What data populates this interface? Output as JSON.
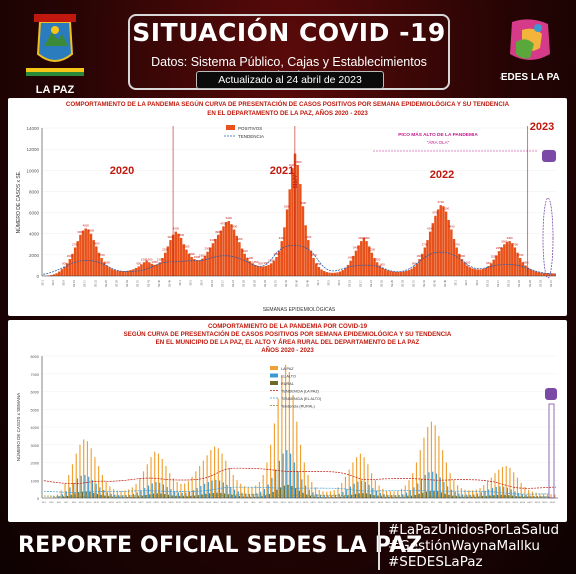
{
  "header": {
    "title": "SITUACIÓN COVID -19",
    "subtitle": "Datos: Sistema Público, Cajas y Establecimientos Privados",
    "updated": "Actualizado al 24 abril de 2023",
    "logo_left_text": "LA PAZ",
    "logo_right_text": "SEDES LA PAZ"
  },
  "footer": {
    "report": "REPORTE OFICIAL SEDES LA PAZ",
    "hashtags": [
      "#LaPazUnidosPorLaSalud",
      "#GestiónWaynaMallku",
      "#SEDESLaPaz"
    ]
  },
  "colors": {
    "accent": "#c0180c",
    "bar": "#e8521a",
    "orange": "#f0a030",
    "blue": "#3d9ad1",
    "olive": "#6b6a2a",
    "background": "#2a0505"
  },
  "chart_data": [
    {
      "type": "bar",
      "title": "COMPORTAMIENTO DE LA PANDEMIA SEGÚN CURVA DE PRESENTACIÓN DE CASOS POSITIVOS POR SEMANA EPIDEMIOLÓGICA Y SU TENDENCIA",
      "subtitle": "EN EL DEPARTAMENTO DE LA PAZ, AÑOS 2020 - 2023",
      "xlabel": "SEMANAS EPIDEMIOLÓGICAS",
      "ylabel": "NÚMERO DE CASOS x SE.",
      "ylim": [
        0,
        14000
      ],
      "yticks": [
        "0",
        "2000",
        "4000",
        "6000",
        "8000",
        "10000",
        "12000",
        "14000"
      ],
      "legend": [
        "POSITIVOS",
        "TENDENCIA"
      ],
      "legend_position": "top-center",
      "year_labels": [
        "2020",
        "2021",
        "2022",
        "2023"
      ],
      "annotation": "PICO MÁS ALTO DE LA PANDEMIA",
      "annotation_sub": "\"ÁRA OLA\"",
      "peak_label": "11577",
      "series": [
        {
          "name": "POSITIVOS",
          "values": [
            10,
            20,
            50,
            90,
            160,
            260,
            420,
            650,
            900,
            1200,
            1600,
            2100,
            2700,
            3300,
            3900,
            4300,
            4500,
            4400,
            4000,
            3400,
            2800,
            2200,
            1700,
            1300,
            1000,
            800,
            650,
            560,
            500,
            480,
            460,
            470,
            500,
            560,
            640,
            760,
            900,
            1100,
            1300,
            1450,
            1300,
            1150,
            1050,
            1100,
            1300,
            1700,
            2200,
            2800,
            3400,
            3900,
            4200,
            4000,
            3600,
            3000,
            2500,
            2100,
            1800,
            1600,
            1500,
            1500,
            1650,
            1900,
            2300,
            2700,
            3100,
            3500,
            3900,
            4300,
            4700,
            5100,
            5200,
            4900,
            4400,
            3800,
            3200,
            2600,
            2100,
            1700,
            1400,
            1200,
            1050,
            950,
            900,
            900,
            950,
            1050,
            1200,
            1450,
            1800,
            2400,
            3300,
            4600,
            6300,
            8200,
            10200,
            11577,
            10500,
            8700,
            6600,
            4800,
            3400,
            2400,
            1700,
            1200,
            850,
            620,
            470,
            370,
            320,
            300,
            310,
            340,
            420,
            560,
            760,
            1050,
            1450,
            1900,
            2400,
            2900,
            3300,
            3600,
            3300,
            2800,
            2200,
            1700,
            1300,
            1000,
            800,
            650,
            540,
            470,
            420,
            400,
            390,
            400,
            430,
            480,
            560,
            700,
            900,
            1200,
            1600,
            2100,
            2700,
            3400,
            4200,
            5000,
            5700,
            6300,
            6700,
            6600,
            6100,
            5300,
            4400,
            3500,
            2700,
            2100,
            1600,
            1250,
            1000,
            830,
            720,
            650,
            620,
            620,
            660,
            760,
            940,
            1200,
            1550,
            1950,
            2350,
            2700,
            3000,
            3200,
            3300,
            3100,
            2700,
            2200,
            1700,
            1300,
            1000,
            780,
            620,
            500,
            420,
            360,
            320,
            290,
            270,
            260,
            250,
            240
          ]
        }
      ]
    },
    {
      "type": "bar",
      "title": "COMPORTAMIENTO DE LA PANDEMIA POR COVID-19",
      "subtitle": "SEGÚN CURVA DE PRESENTACIÓN DE CASOS POSITIVOS POR SEMANA EPIDEMIOLÓGICA Y SU TENDENCIA",
      "subtitle2": "EN EL MUNICIPIO DE LA PAZ, EL ALTO Y ÁREA RURAL DEL DEPARTAMENTO DE LA PAZ",
      "subtitle3": "AÑOS 2020 - 2023",
      "ylabel": "NÚMERO DE CASOS x SEMANA",
      "ylim": [
        0,
        8000
      ],
      "yticks": [
        "0",
        "1000",
        "2000",
        "3000",
        "4000",
        "5000",
        "6000",
        "7000",
        "8000"
      ],
      "legend": [
        "LA PAZ",
        "EL ALTO",
        "RURAL",
        "TENDENCIA (LA PAZ)",
        "TENDENCIA (EL ALTO)",
        "Tendencia (RURAL)"
      ],
      "legend_position": "center",
      "series": [
        {
          "name": "LA PAZ",
          "values": [
            0,
            10,
            30,
            80,
            200,
            420,
            800,
            1300,
            1900,
            2500,
            3000,
            3300,
            3200,
            2800,
            2300,
            1800,
            1300,
            900,
            650,
            500,
            420,
            400,
            420,
            480,
            600,
            800,
            1100,
            1500,
            1900,
            2300,
            2600,
            2500,
            2200,
            1800,
            1400,
            1100,
            900,
            800,
            820,
            950,
            1200,
            1500,
            1800,
            2100,
            2400,
            2700,
            2900,
            2800,
            2500,
            2100,
            1700,
            1300,
            1000,
            800,
            650,
            600,
            620,
            700,
            900,
            1300,
            2000,
            3000,
            4200,
            5600,
            6800,
            7500,
            7100,
            5800,
            4300,
            3000,
            2000,
            1300,
            900,
            600,
            450,
            380,
            360,
            380,
            450,
            600,
            850,
            1200,
            1600,
            2000,
            2300,
            2500,
            2300,
            1900,
            1400,
            1000,
            700,
            520,
            420,
            380,
            380,
            420,
            520,
            700,
            1000,
            1400,
            2000,
            2700,
            3400,
            4000,
            4300,
            4100,
            3500,
            2700,
            2000,
            1400,
            1000,
            720,
            560,
            470,
            430,
            430,
            470,
            560,
            720,
            920,
            1150,
            1400,
            1600,
            1750,
            1800,
            1700,
            1450,
            1150,
            850,
            620,
            460,
            360,
            300,
            260,
            240,
            220,
            210,
            200
          ]
        },
        {
          "name": "EL ALTO",
          "values": [
            0,
            5,
            15,
            40,
            100,
            210,
            380,
            600,
            850,
            1100,
            1250,
            1300,
            1200,
            1000,
            800,
            600,
            450,
            320,
            240,
            190,
            160,
            150,
            160,
            180,
            230,
            310,
            420,
            560,
            700,
            820,
            900,
            860,
            760,
            620,
            490,
            390,
            320,
            290,
            300,
            350,
            440,
            560,
            680,
            800,
            900,
            980,
            1020,
            980,
            880,
            740,
            600,
            470,
            370,
            300,
            250,
            230,
            240,
            270,
            350,
            500,
            760,
            1140,
            1600,
            2100,
            2500,
            2700,
            2500,
            2000,
            1500,
            1050,
            700,
            460,
            320,
            230,
            180,
            150,
            140,
            150,
            180,
            240,
            340,
            480,
            640,
            800,
            920,
            980,
            900,
            740,
            560,
            400,
            290,
            220,
            180,
            160,
            160,
            180,
            220,
            300,
            420,
            600,
            820,
            1060,
            1300,
            1450,
            1480,
            1380,
            1160,
            900,
            660,
            470,
            340,
            260,
            210,
            190,
            190,
            210,
            250,
            320,
            400,
            480,
            560,
            620,
            650,
            640,
            580,
            480,
            370,
            280,
            210,
            170,
            140,
            120,
            110,
            100,
            95,
            90
          ]
        },
        {
          "name": "RURAL",
          "values": [
            0,
            2,
            6,
            15,
            35,
            70,
            120,
            190,
            260,
            320,
            360,
            370,
            340,
            290,
            230,
            180,
            130,
            95,
            70,
            55,
            48,
            45,
            48,
            55,
            70,
            95,
            130,
            170,
            210,
            245,
            265,
            255,
            225,
            185,
            145,
            115,
            95,
            85,
            90,
            105,
            130,
            165,
            200,
            235,
            265,
            285,
            295,
            285,
            255,
            215,
            175,
            140,
            110,
            90,
            75,
            70,
            72,
            82,
            105,
            150,
            230,
            340,
            470,
            600,
            700,
            740,
            680,
            550,
            410,
            290,
            195,
            130,
            90,
            65,
            52,
            44,
            42,
            44,
            52,
            70,
            100,
            140,
            185,
            230,
            265,
            280,
            260,
            215,
            160,
            115,
            85,
            64,
            52,
            47,
            47,
            52,
            64,
            88,
            122,
            170,
            230,
            295,
            355,
            395,
            400,
            370,
            310,
            240,
            175,
            125,
            92,
            72,
            60,
            55,
            55,
            60,
            72,
            90,
            115,
            140,
            162,
            178,
            186,
            182,
            165,
            138,
            108,
            82,
            62,
            50,
            42,
            36,
            33,
            31,
            30,
            29
          ]
        }
      ]
    }
  ]
}
